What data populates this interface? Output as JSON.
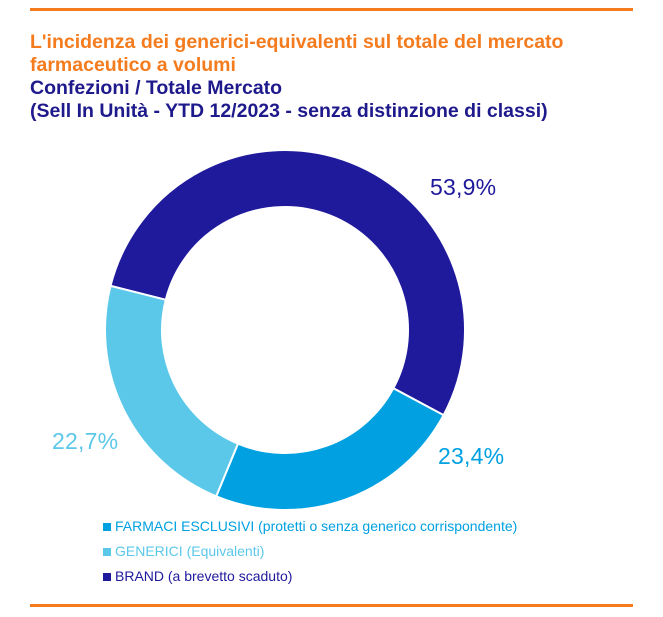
{
  "header": {
    "title": "L'incidenza dei generici-equivalenti sul totale del mercato farmaceutico a volumi",
    "subtitle_line1": "Confezioni / Totale Mercato",
    "subtitle_line2": "(Sell In Unità - YTD 12/2023 - senza distinzione di classi)"
  },
  "colors": {
    "accent": "#f47c1e",
    "heading": "#1f1a8c"
  },
  "chart_data": {
    "type": "pie",
    "donut": true,
    "legend_position": "bottom",
    "slices": [
      {
        "name": "BRAND (a brevetto scaduto)",
        "value": 53.9,
        "label": "53,9%",
        "color": "#1f1a9c"
      },
      {
        "name": "FARMACI ESCLUSIVI (protetti o senza generico corrispondente)",
        "value": 23.4,
        "label": "23,4%",
        "color": "#00a0e1"
      },
      {
        "name": "GENERICI (Equivalenti)",
        "value": 22.7,
        "label": "22,7%",
        "color": "#5bc8ea"
      }
    ],
    "legend_order": [
      1,
      2,
      0
    ]
  }
}
